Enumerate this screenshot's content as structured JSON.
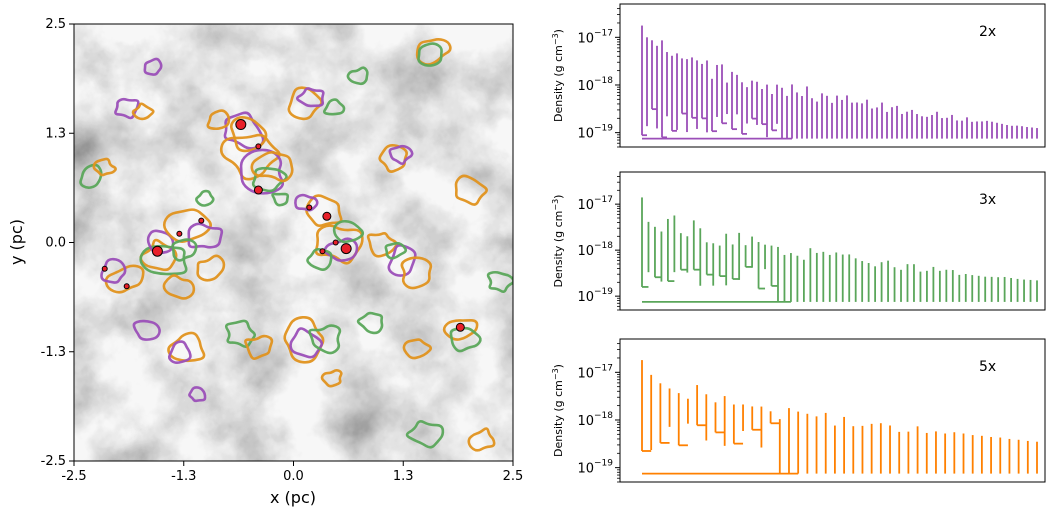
{
  "chart_data": [
    {
      "type": "image",
      "xlabel": "x (pc)",
      "ylabel": "y (pc)",
      "xlim": [
        -2.5,
        2.5
      ],
      "ylim": [
        -2.5,
        2.5
      ],
      "xticks": [
        "-2.5",
        "-1.3",
        "0.0",
        "1.3",
        "2.5"
      ],
      "yticks": [
        "-2.5",
        "-1.3",
        "0.0",
        "1.3",
        "2.5"
      ],
      "background": "grayscale column density map",
      "contour_colors": {
        "2x": "#9b4fb8",
        "3x": "#5aa65a",
        "5x": "#e0921e"
      },
      "sinks": [
        {
          "x": -0.6,
          "y": 1.35,
          "size": "large"
        },
        {
          "x": -0.4,
          "y": 1.1,
          "size": "small"
        },
        {
          "x": -0.4,
          "y": 0.6,
          "size": "medium"
        },
        {
          "x": -1.05,
          "y": 0.25,
          "size": "small"
        },
        {
          "x": -1.3,
          "y": 0.1,
          "size": "small"
        },
        {
          "x": -1.55,
          "y": -0.1,
          "size": "large"
        },
        {
          "x": -2.15,
          "y": -0.3,
          "size": "small"
        },
        {
          "x": -1.9,
          "y": -0.5,
          "size": "small"
        },
        {
          "x": 0.38,
          "y": 0.3,
          "size": "medium"
        },
        {
          "x": 0.6,
          "y": -0.07,
          "size": "large"
        },
        {
          "x": 0.48,
          "y": 0.0,
          "size": "small"
        },
        {
          "x": 0.33,
          "y": -0.1,
          "size": "small"
        },
        {
          "x": 0.18,
          "y": 0.4,
          "size": "small"
        },
        {
          "x": 1.9,
          "y": -0.97,
          "size": "medium"
        }
      ]
    },
    {
      "type": "dendrogram",
      "label": "2x",
      "color": "#9b4fb8",
      "ylabel": "Density (g cm",
      "ylabel_sup": "−3",
      "ylabel_end": ")",
      "yscale": "log",
      "ylim": [
        5e-20,
        5e-17
      ],
      "yticks": [
        "10",
        "10",
        "10"
      ],
      "ytick_sups": [
        "−17",
        "−18",
        "−19"
      ],
      "n_leaves": 80,
      "peak": 2.5e-17,
      "floor": 1.25e-19
    },
    {
      "type": "dendrogram",
      "label": "3x",
      "color": "#5aa65a",
      "ylabel": "Density (g cm",
      "ylabel_sup": "−3",
      "ylabel_end": ")",
      "yscale": "log",
      "ylim": [
        5e-20,
        5e-17
      ],
      "yticks": [
        "10",
        "10",
        "10"
      ],
      "ytick_sups": [
        "−17",
        "−18",
        "−19"
      ],
      "n_leaves": 62,
      "peak": 2e-17,
      "floor": 2.2e-19
    },
    {
      "type": "dendrogram",
      "label": "5x",
      "color": "#ff8000",
      "ylabel": "Density (g cm",
      "ylabel_sup": "−3",
      "ylabel_end": ")",
      "yscale": "log",
      "ylim": [
        5e-20,
        5e-17
      ],
      "yticks": [
        "10",
        "10",
        "10"
      ],
      "ytick_sups": [
        "−17",
        "−18",
        "−19"
      ],
      "n_leaves": 44,
      "peak": 2.6e-17,
      "floor": 3.5e-19
    }
  ]
}
